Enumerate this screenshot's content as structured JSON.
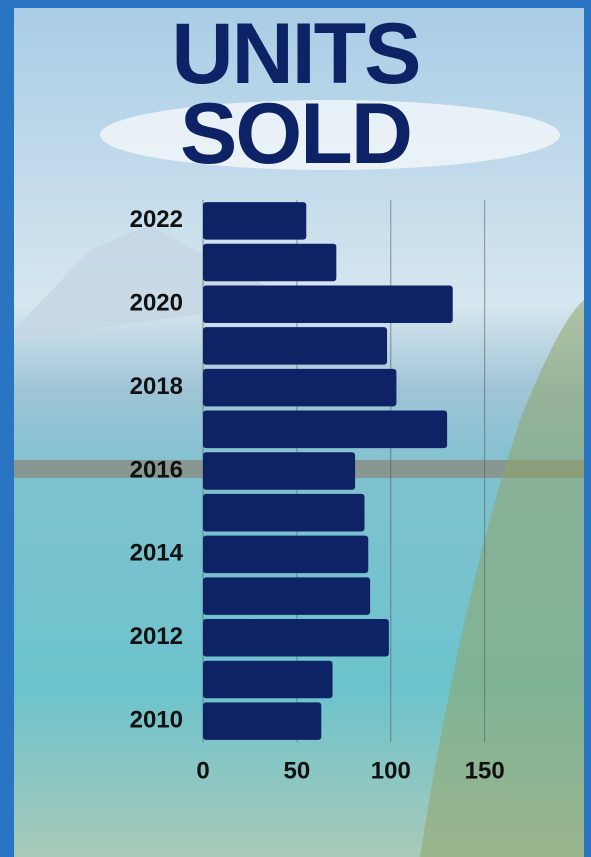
{
  "chart_data": {
    "type": "hbar",
    "title": "UNITS SOLD",
    "categories": [
      "2022",
      null,
      "2020",
      null,
      "2018",
      null,
      "2016",
      null,
      "2014",
      null,
      "2012",
      null,
      "2010"
    ],
    "values": [
      55,
      71,
      133,
      98,
      103,
      130,
      81,
      86,
      88,
      89,
      99,
      69,
      63
    ],
    "color": "#0d2366",
    "xlim": [
      0,
      180
    ],
    "xticks": [
      0,
      50,
      100,
      150
    ],
    "grid": true
  }
}
